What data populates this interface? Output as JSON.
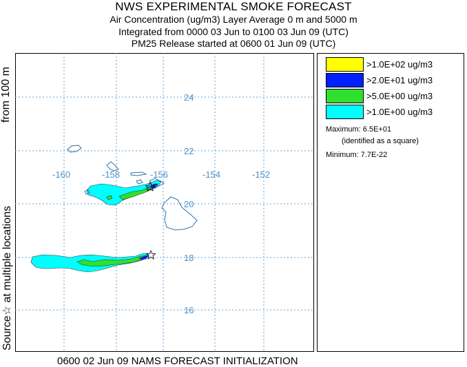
{
  "title": {
    "main": "NWS EXPERIMENTAL SMOKE FORECAST",
    "line1": "Air Concentration (ug/m3) Layer Average    0 m and  5000 m",
    "line2": "Integrated from 0000 03 Jun to 0100 03 Jun 09 (UTC)",
    "line3": "PM25 Release started at 0600 01 Jun 09 (UTC)"
  },
  "side": {
    "top": "from  100 m",
    "bottom": "Source☆  at multiple locations"
  },
  "map": {
    "lon_labels": [
      "-160",
      "-158",
      "-156",
      "-154",
      "-152"
    ],
    "lat_labels": [
      "24",
      "22",
      "20",
      "18",
      "16"
    ],
    "colors": {
      "grid": "#5aa0d8",
      "coast": "#2f6fa8",
      "label": "#4a90c8"
    }
  },
  "legend": {
    "items": [
      {
        "label": ">1.0E+02 ug/m3",
        "color": "#ffff00"
      },
      {
        "label": ">2.0E+01 ug/m3",
        "color": "#0020ff"
      },
      {
        "label": ">5.0E+00 ug/m3",
        "color": "#30e030"
      },
      {
        "label": ">1.0E+00 ug/m3",
        "color": "#00ffff"
      }
    ],
    "maximum": "Maximum: 6.5E+01",
    "max_note": "(identified as a square)",
    "minimum": "Minimum: 7.7E-22"
  },
  "footer": "0600 02 Jun 09 NAMS FORECAST INITIALIZATION"
}
